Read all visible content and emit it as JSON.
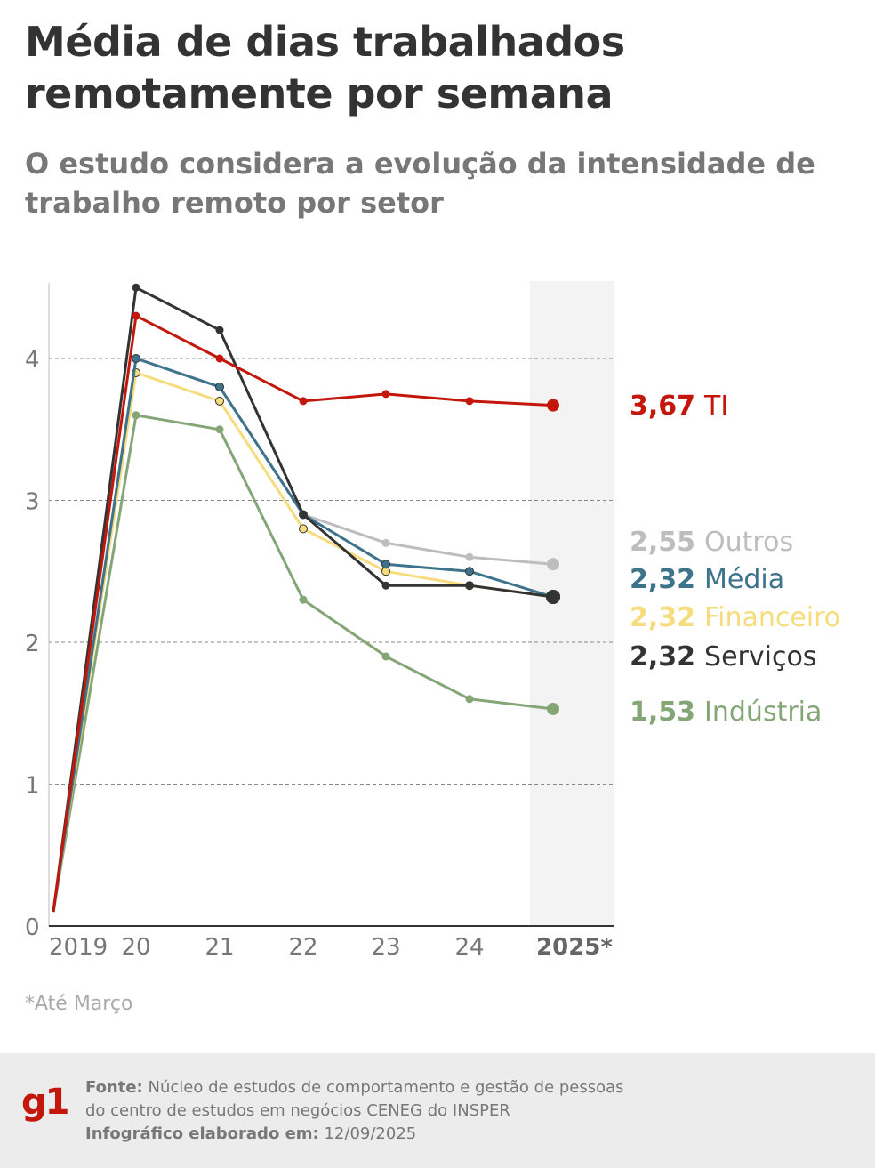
{
  "header": {
    "title": "Média de dias trabalhados remotamente por semana",
    "subtitle": "O estudo considera a evolução da intensidade de trabalho remoto por setor"
  },
  "chart_data": {
    "type": "line",
    "title": "Média de dias trabalhados remotamente por semana",
    "xlabel": "",
    "ylabel": "",
    "categories": [
      "2019",
      "20",
      "21",
      "22",
      "23",
      "24",
      "2025*"
    ],
    "highlight_category": "2025*",
    "yticks": [
      0,
      1,
      2,
      3,
      4
    ],
    "ylim": [
      0,
      4.6
    ],
    "grid": true,
    "series": [
      {
        "name": "TI",
        "label_value": "3,67",
        "color": "#c4170c",
        "values": [
          0.1,
          4.3,
          4.0,
          3.7,
          3.75,
          3.7,
          3.67
        ]
      },
      {
        "name": "Outros",
        "label_value": "2,55",
        "color": "#bdbdbd",
        "values": [
          0.1,
          4.0,
          3.8,
          2.9,
          2.7,
          2.6,
          2.55
        ]
      },
      {
        "name": "Média",
        "label_value": "2,32",
        "color": "#3e738c",
        "values": [
          0.1,
          4.0,
          3.8,
          2.9,
          2.55,
          2.5,
          2.32
        ]
      },
      {
        "name": "Financeiro",
        "label_value": "2,32",
        "color": "#f6dc7c",
        "values": [
          0.1,
          3.9,
          3.7,
          2.8,
          2.5,
          2.4,
          2.32
        ]
      },
      {
        "name": "Serviços",
        "label_value": "2,32",
        "color": "#333333",
        "values": [
          0.1,
          4.5,
          4.2,
          2.9,
          2.4,
          2.4,
          2.32
        ]
      },
      {
        "name": "Indústria",
        "label_value": "1,53",
        "color": "#84a676",
        "values": [
          0.1,
          3.6,
          3.5,
          2.3,
          1.9,
          1.6,
          1.53
        ]
      }
    ]
  },
  "footnote": "*Até Março",
  "footer": {
    "logo": "g1",
    "source_label": "Fonte:",
    "source_line1": "Núcleo de estudos de comportamento e gestão de pessoas",
    "source_line2": "do centro de estudos em negócios CENEG do INSPER",
    "date_label": "Infográfico elaborado em:",
    "date": "12/09/2025"
  }
}
